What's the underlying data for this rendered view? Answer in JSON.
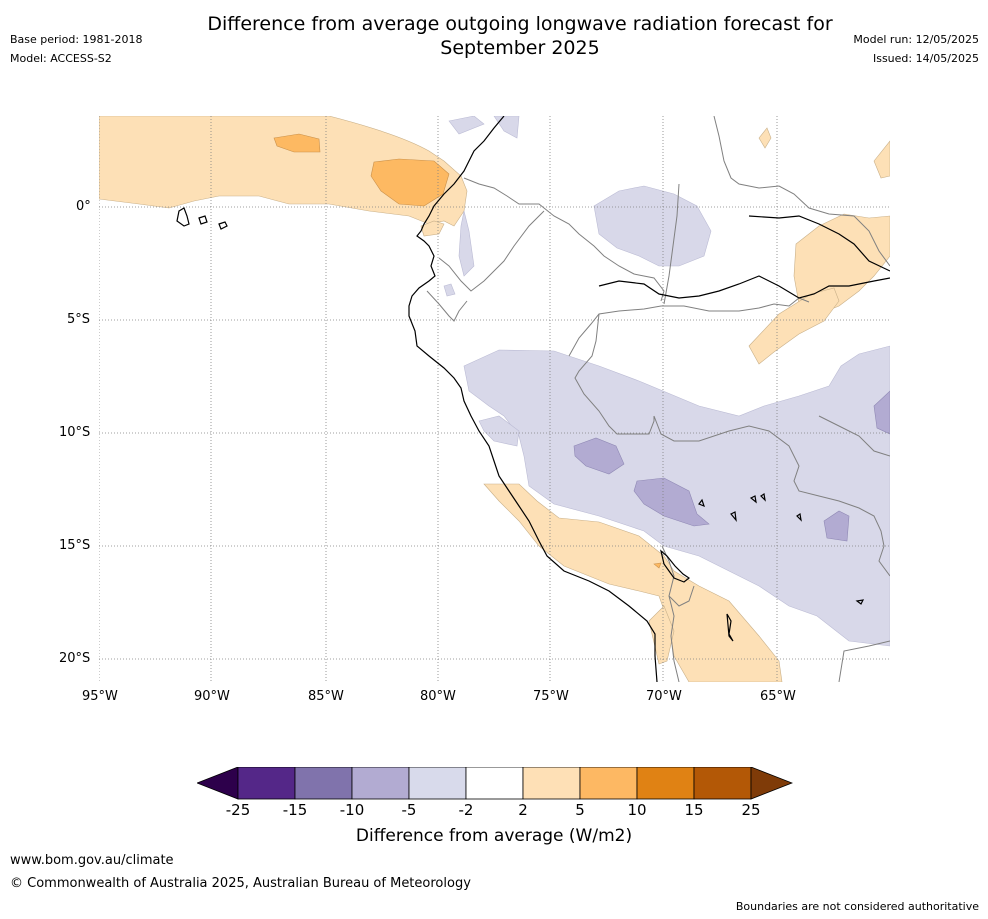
{
  "header": {
    "title_line1": "Difference from average outgoing longwave radiation forecast for",
    "title_line2": "September 2025",
    "base_period": "Base period: 1981-2018",
    "model": "Model: ACCESS-S2",
    "model_run": "Model run: 12/05/2025",
    "issued": "Issued: 14/05/2025"
  },
  "map": {
    "lon_ticks": [
      "95°W",
      "90°W",
      "85°W",
      "80°W",
      "75°W",
      "70°W",
      "65°W"
    ],
    "lat_ticks": [
      "0°",
      "5°S",
      "10°S",
      "15°S",
      "20°S"
    ],
    "colors": {
      "pos_2_5": "#fde0b6",
      "pos_5_10": "#fdb962",
      "neg_2_5": "#d8d8e9",
      "neg_5_10": "#b2abd2",
      "coast": "#000000",
      "border": "#808080",
      "grid": "#808080"
    }
  },
  "colorbar": {
    "title": "Difference from average (W/m2)",
    "ticks": [
      "-25",
      "-15",
      "-10",
      "-5",
      "-2",
      "2",
      "5",
      "10",
      "15",
      "25"
    ],
    "colors": [
      "#2d004b",
      "#542788",
      "#8073ac",
      "#b2abd2",
      "#d8daeb",
      "#ffffff",
      "#fee0b6",
      "#fdb863",
      "#e08214",
      "#b35806",
      "#7f3b08"
    ]
  },
  "footer": {
    "url": "www.bom.gov.au/climate",
    "copyright": "© Commonwealth of Australia 2025, Australian Bureau of Meteorology",
    "disclaimer": "Boundaries are not considered authoritative"
  }
}
